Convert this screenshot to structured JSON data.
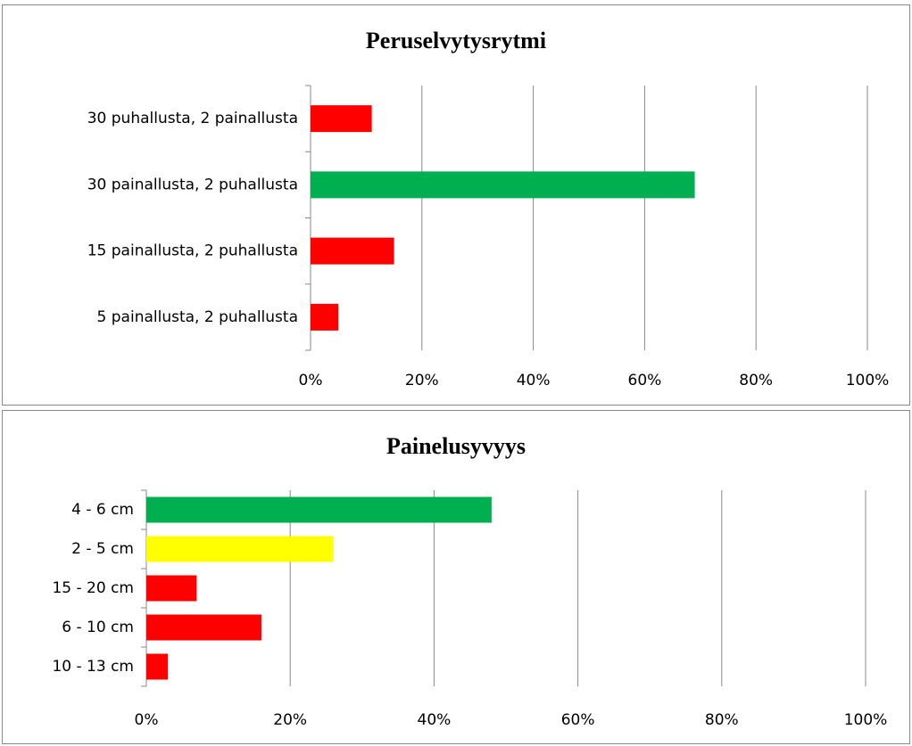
{
  "chart_data": [
    {
      "type": "barh",
      "title": "Peruselvytysrytmi",
      "categories": [
        "30 puhallusta, 2 painallusta",
        "30 painallusta, 2 puhallusta",
        "15 painallusta, 2 puhallusta",
        "5 painallusta, 2 puhallusta"
      ],
      "values": [
        11,
        69,
        15,
        5
      ],
      "colors": [
        "#ff0000",
        "#00b050",
        "#ff0000",
        "#ff0000"
      ],
      "xlim": [
        0,
        100
      ],
      "xticks": [
        {
          "value": 0,
          "label": "0%"
        },
        {
          "value": 20,
          "label": "20%"
        },
        {
          "value": 40,
          "label": "40%"
        },
        {
          "value": 60,
          "label": "60%"
        },
        {
          "value": 80,
          "label": "80%"
        },
        {
          "value": 100,
          "label": "100%"
        }
      ],
      "grid": true
    },
    {
      "type": "barh",
      "title": "Painelusyvyys",
      "categories": [
        "4 - 6 cm",
        "2 - 5 cm",
        "15 - 20 cm",
        "6 - 10 cm",
        "10 - 13 cm"
      ],
      "values": [
        48,
        26,
        7,
        16,
        3
      ],
      "colors": [
        "#00b050",
        "#ffff00",
        "#ff0000",
        "#ff0000",
        "#ff0000"
      ],
      "xlim": [
        0,
        100
      ],
      "xticks": [
        {
          "value": 0,
          "label": "0%"
        },
        {
          "value": 20,
          "label": "20%"
        },
        {
          "value": 40,
          "label": "40%"
        },
        {
          "value": 60,
          "label": "60%"
        },
        {
          "value": 80,
          "label": "80%"
        },
        {
          "value": 100,
          "label": "100%"
        }
      ],
      "grid": true
    }
  ]
}
